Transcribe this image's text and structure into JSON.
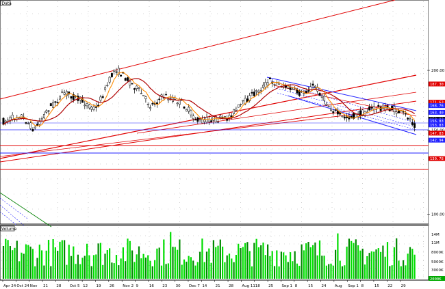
{
  "app": {
    "price_panel_title": "Data",
    "volume_panel_title": "Volume"
  },
  "colors": {
    "background": "#ffffff",
    "grid": "#b0b0b0",
    "candle_up": "#ffffff",
    "candle_down": "#000000",
    "ma_fast": "#ff8c00",
    "ma_slow": "#b00000",
    "trendline_red": "#e00000",
    "trendline_blue": "#2020ff",
    "volume_bar": "#00dd00",
    "volume_bar_dark": "#008800",
    "price_tag_red": "#e00000",
    "price_tag_blue": "#2020ff",
    "price_tag_black": "#000000"
  },
  "price_axis": {
    "labels": [
      {
        "text": "200.00",
        "value": 200,
        "tag": "none"
      },
      {
        "text": "150.00",
        "value": 150,
        "tag": "none"
      },
      {
        "text": "100.00",
        "value": 100,
        "tag": "none"
      }
    ],
    "tags": [
      {
        "text": "187.30",
        "value": 187.3,
        "color": "red"
      },
      {
        "text": "171.63",
        "value": 171.63,
        "color": "red"
      },
      {
        "text": "168.76",
        "value": 168.76,
        "color": "blue"
      },
      {
        "text": "163.40",
        "value": 163.4,
        "color": "blue"
      },
      {
        "text": "158.03",
        "value": 158.03,
        "color": "black"
      },
      {
        "text": "156.83",
        "value": 156.83,
        "color": "blue"
      },
      {
        "text": "153.83",
        "value": 153.83,
        "color": "blue"
      },
      {
        "text": "147.83",
        "value": 147.83,
        "color": "red"
      },
      {
        "text": "142.94",
        "value": 142.94,
        "color": "blue"
      },
      {
        "text": "130.78",
        "value": 130.78,
        "color": "red"
      }
    ]
  },
  "volume_axis": {
    "labels": [
      "14M",
      "11M",
      "8000K",
      "5000K",
      "3000K"
    ],
    "current_tag": "2000K"
  },
  "x_axis": {
    "labels": [
      "Apr 24",
      "Oct 24",
      "Nov",
      "21",
      "28",
      "Oct 5",
      "12",
      "19",
      "26",
      "Nov 2",
      "9",
      "16",
      "23",
      "30",
      "Dec 7",
      "14",
      "21",
      "28",
      "Aug 11",
      "18",
      "25",
      "Sep 1",
      "8",
      "15",
      "24",
      "Aug",
      "Sep 1",
      "8",
      "15",
      "22",
      "29"
    ]
  }
}
